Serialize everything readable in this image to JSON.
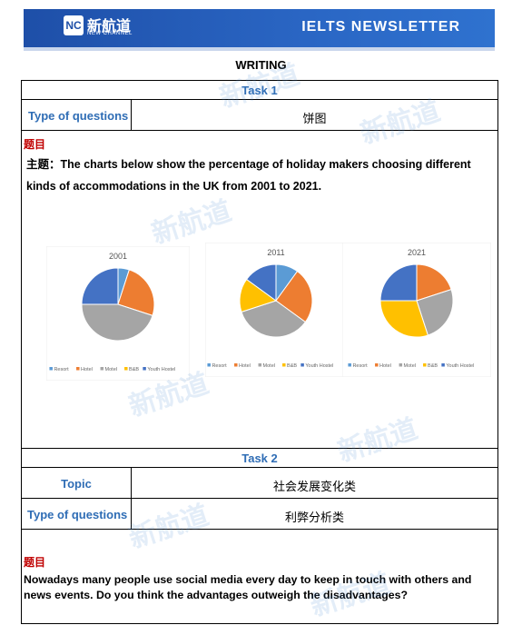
{
  "header": {
    "logo_mark": "NC",
    "logo_cn": "新航道",
    "logo_en": "NEW CHANNEL",
    "newsletter_title": "IELTS  NEWSLETTER"
  },
  "section_title": "WRITING",
  "task1": {
    "title": "Task 1",
    "type_label": "Type of questions",
    "type_value": "饼图",
    "topic_label": "题目",
    "prompt_prefix": "主题：",
    "prompt_line1": "The charts below show the percentage of holiday makers choosing different",
    "prompt_line2": "kinds of accommodations in the UK from 2001 to 2021."
  },
  "task2": {
    "title": "Task 2",
    "topic_label": "Topic",
    "topic_value": "社会发展变化类",
    "type_label": "Type of questions",
    "type_value": "利弊分析类",
    "heading": "题目",
    "prompt_line1": "Nowadays many people use social media every day to keep in touch with others and",
    "prompt_line2": "news events. Do you think the advantages outweigh the disadvantages?"
  },
  "watermark_text": "新航道",
  "colors": {
    "Resort": "#5b9bd5",
    "Hotel": "#ed7d31",
    "Motel": "#a5a5a5",
    "B&B": "#ffc000",
    "Youth Hostel": "#4472c4"
  },
  "chart_data": [
    {
      "type": "pie",
      "title": "2001",
      "categories": [
        "Resort",
        "Hotel",
        "Motel",
        "B&B",
        "Youth Hostel"
      ],
      "values": [
        5,
        25,
        45,
        0,
        25
      ]
    },
    {
      "type": "pie",
      "title": "2011",
      "categories": [
        "Resort",
        "Hotel",
        "Motel",
        "B&B",
        "Youth Hostel"
      ],
      "values": [
        10,
        25,
        35,
        15,
        15
      ]
    },
    {
      "type": "pie",
      "title": "2021",
      "categories": [
        "Resort",
        "Hotel",
        "Motel",
        "B&B",
        "Youth Hostel"
      ],
      "values": [
        0,
        20,
        25,
        30,
        25
      ]
    }
  ]
}
